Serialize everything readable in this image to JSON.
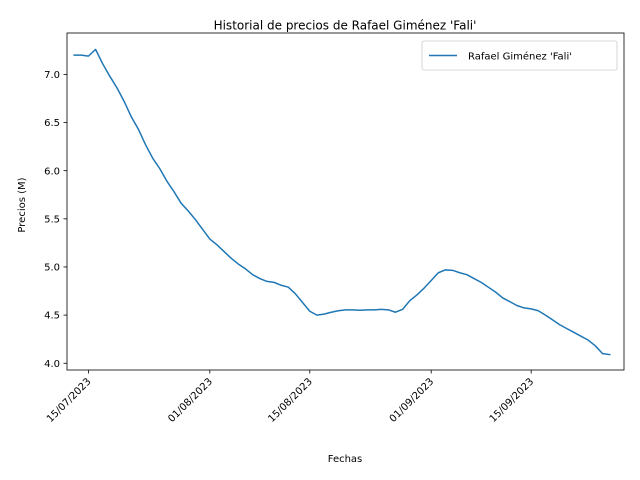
{
  "chart_data": {
    "type": "line",
    "title": "Historial de precios de Rafael Giménez 'Fali'",
    "xlabel": "Fechas",
    "ylabel": "Precios (M)",
    "xlim": [
      "2023-07-12",
      "2023-09-28"
    ],
    "ylim": [
      3.93,
      7.43
    ],
    "x_ticks": [
      {
        "date": "2023-07-15",
        "label": "15/07/2023"
      },
      {
        "date": "2023-08-01",
        "label": "01/08/2023"
      },
      {
        "date": "2023-08-15",
        "label": "15/08/2023"
      },
      {
        "date": "2023-09-01",
        "label": "01/09/2023"
      },
      {
        "date": "2023-09-15",
        "label": "15/09/2023"
      }
    ],
    "y_ticks": [
      {
        "value": 4.0,
        "label": "4.0"
      },
      {
        "value": 4.5,
        "label": "4.5"
      },
      {
        "value": 5.0,
        "label": "5.0"
      },
      {
        "value": 5.5,
        "label": "5.5"
      },
      {
        "value": 6.0,
        "label": "6.0"
      },
      {
        "value": 6.5,
        "label": "6.5"
      },
      {
        "value": 7.0,
        "label": "7.0"
      }
    ],
    "grid": false,
    "legend": "top-right",
    "series": [
      {
        "name": "Rafael Giménez 'Fali'",
        "color": "#1f77b4",
        "points": [
          [
            "2023-07-13",
            7.2
          ],
          [
            "2023-07-14",
            7.2
          ],
          [
            "2023-07-15",
            7.19
          ],
          [
            "2023-07-16",
            7.26
          ],
          [
            "2023-07-17",
            7.11
          ],
          [
            "2023-07-18",
            6.98
          ],
          [
            "2023-07-19",
            6.86
          ],
          [
            "2023-07-20",
            6.72
          ],
          [
            "2023-07-21",
            6.56
          ],
          [
            "2023-07-22",
            6.43
          ],
          [
            "2023-07-23",
            6.27
          ],
          [
            "2023-07-24",
            6.13
          ],
          [
            "2023-07-25",
            6.02
          ],
          [
            "2023-07-26",
            5.89
          ],
          [
            "2023-07-27",
            5.78
          ],
          [
            "2023-07-28",
            5.66
          ],
          [
            "2023-07-29",
            5.58
          ],
          [
            "2023-07-30",
            5.49
          ],
          [
            "2023-07-31",
            5.39
          ],
          [
            "2023-08-01",
            5.29
          ],
          [
            "2023-08-02",
            5.23
          ],
          [
            "2023-08-03",
            5.16
          ],
          [
            "2023-08-04",
            5.09
          ],
          [
            "2023-08-05",
            5.03
          ],
          [
            "2023-08-06",
            4.98
          ],
          [
            "2023-08-07",
            4.92
          ],
          [
            "2023-08-08",
            4.88
          ],
          [
            "2023-08-09",
            4.85
          ],
          [
            "2023-08-10",
            4.84
          ],
          [
            "2023-08-11",
            4.81
          ],
          [
            "2023-08-12",
            4.79
          ],
          [
            "2023-08-13",
            4.72
          ],
          [
            "2023-08-14",
            4.63
          ],
          [
            "2023-08-15",
            4.54
          ],
          [
            "2023-08-16",
            4.5
          ],
          [
            "2023-08-17",
            4.51
          ],
          [
            "2023-08-18",
            4.53
          ],
          [
            "2023-08-19",
            4.545
          ],
          [
            "2023-08-20",
            4.555
          ],
          [
            "2023-08-21",
            4.555
          ],
          [
            "2023-08-22",
            4.55
          ],
          [
            "2023-08-23",
            4.555
          ],
          [
            "2023-08-24",
            4.555
          ],
          [
            "2023-08-25",
            4.56
          ],
          [
            "2023-08-26",
            4.555
          ],
          [
            "2023-08-27",
            4.53
          ],
          [
            "2023-08-28",
            4.56
          ],
          [
            "2023-08-29",
            4.65
          ],
          [
            "2023-08-30",
            4.71
          ],
          [
            "2023-08-31",
            4.78
          ],
          [
            "2023-09-01",
            4.86
          ],
          [
            "2023-09-02",
            4.94
          ],
          [
            "2023-09-03",
            4.97
          ],
          [
            "2023-09-04",
            4.965
          ],
          [
            "2023-09-05",
            4.94
          ],
          [
            "2023-09-06",
            4.92
          ],
          [
            "2023-09-07",
            4.88
          ],
          [
            "2023-09-08",
            4.84
          ],
          [
            "2023-09-09",
            4.79
          ],
          [
            "2023-09-10",
            4.74
          ],
          [
            "2023-09-11",
            4.68
          ],
          [
            "2023-09-12",
            4.64
          ],
          [
            "2023-09-13",
            4.6
          ],
          [
            "2023-09-14",
            4.575
          ],
          [
            "2023-09-15",
            4.565
          ],
          [
            "2023-09-16",
            4.545
          ],
          [
            "2023-09-17",
            4.5
          ],
          [
            "2023-09-18",
            4.45
          ],
          [
            "2023-09-19",
            4.4
          ],
          [
            "2023-09-20",
            4.36
          ],
          [
            "2023-09-21",
            4.32
          ],
          [
            "2023-09-22",
            4.28
          ],
          [
            "2023-09-23",
            4.24
          ],
          [
            "2023-09-24",
            4.18
          ],
          [
            "2023-09-25",
            4.1
          ],
          [
            "2023-09-26",
            4.09
          ]
        ]
      }
    ]
  }
}
